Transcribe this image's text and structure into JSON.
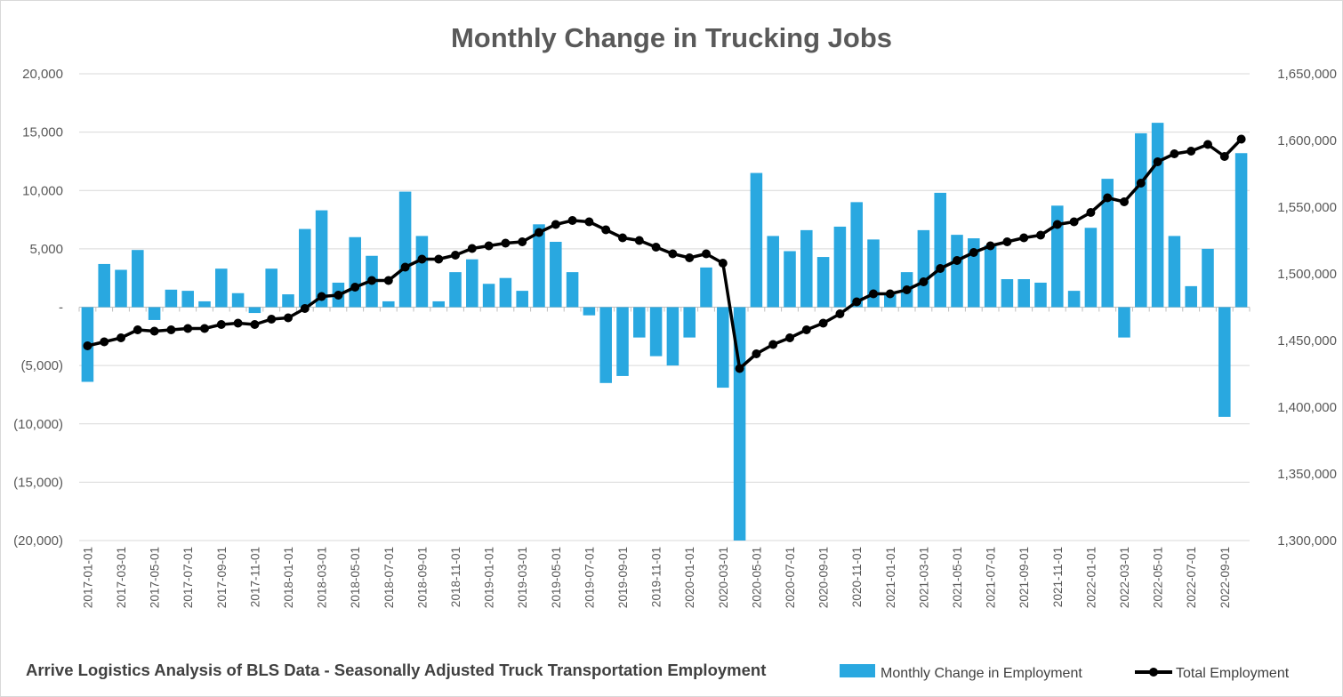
{
  "chart_data": {
    "type": "bar+line",
    "title": "Monthly Change in Trucking Jobs",
    "source_note": "Arrive Logistics Analysis of BLS Data - Seasonally Adjusted Truck Transportation  Employment",
    "x": [
      "2017-01-01",
      "2017-02-01",
      "2017-03-01",
      "2017-04-01",
      "2017-05-01",
      "2017-06-01",
      "2017-07-01",
      "2017-08-01",
      "2017-09-01",
      "2017-10-01",
      "2017-11-01",
      "2017-12-01",
      "2018-01-01",
      "2018-02-01",
      "2018-03-01",
      "2018-04-01",
      "2018-05-01",
      "2018-06-01",
      "2018-07-01",
      "2018-08-01",
      "2018-09-01",
      "2018-10-01",
      "2018-11-01",
      "2018-12-01",
      "2019-01-01",
      "2019-02-01",
      "2019-03-01",
      "2019-04-01",
      "2019-05-01",
      "2019-06-01",
      "2019-07-01",
      "2019-08-01",
      "2019-09-01",
      "2019-10-01",
      "2019-11-01",
      "2019-12-01",
      "2020-01-01",
      "2020-02-01",
      "2020-03-01",
      "2020-04-01",
      "2020-05-01",
      "2020-06-01",
      "2020-07-01",
      "2020-08-01",
      "2020-09-01",
      "2020-10-01",
      "2020-11-01",
      "2020-12-01",
      "2021-01-01",
      "2021-02-01",
      "2021-03-01",
      "2021-04-01",
      "2021-05-01",
      "2021-06-01",
      "2021-07-01",
      "2021-08-01",
      "2021-09-01",
      "2021-10-01",
      "2021-11-01",
      "2021-12-01",
      "2022-01-01",
      "2022-02-01",
      "2022-03-01",
      "2022-04-01",
      "2022-05-01",
      "2022-06-01",
      "2022-07-01",
      "2022-08-01",
      "2022-09-01",
      "2022-10-01"
    ],
    "x_tick_labels": [
      "2017-01-01",
      "2017-03-01",
      "2017-05-01",
      "2017-07-01",
      "2017-09-01",
      "2017-11-01",
      "2018-01-01",
      "2018-03-01",
      "2018-05-01",
      "2018-07-01",
      "2018-09-01",
      "2018-11-01",
      "2019-01-01",
      "2019-03-01",
      "2019-05-01",
      "2019-07-01",
      "2019-09-01",
      "2019-11-01",
      "2020-01-01",
      "2020-03-01",
      "2020-05-01",
      "2020-07-01",
      "2020-09-01",
      "2020-11-01",
      "2021-01-01",
      "2021-03-01",
      "2021-05-01",
      "2021-07-01",
      "2021-09-01",
      "2021-11-01",
      "2022-01-01",
      "2022-03-01",
      "2022-05-01",
      "2022-07-01",
      "2022-09-01"
    ],
    "series": [
      {
        "name": "Monthly Change in Employment",
        "type": "bar",
        "axis": "left",
        "color": "#29a8e0",
        "values": [
          -6400,
          3700,
          3200,
          4900,
          -1100,
          1500,
          1400,
          500,
          3300,
          1200,
          -500,
          3300,
          1100,
          6700,
          8300,
          2100,
          6000,
          4400,
          500,
          9900,
          6100,
          500,
          3000,
          4100,
          2000,
          2500,
          1400,
          7100,
          5600,
          3000,
          -700,
          -6500,
          -5900,
          -2600,
          -4200,
          -5000,
          -2600,
          3400,
          -6900,
          -20000,
          11500,
          6100,
          4800,
          6600,
          4300,
          6900,
          9000,
          5800,
          1100,
          3000,
          6600,
          9800,
          6200,
          5900,
          5300,
          2400,
          2400,
          2100,
          8700,
          1400,
          6800,
          11000,
          -2600,
          14900,
          15800,
          6100,
          1800,
          5000,
          -9400,
          13200
        ]
      },
      {
        "name": "Total Employment",
        "type": "line",
        "axis": "right",
        "color": "#000000",
        "values": [
          1446000,
          1449000,
          1452000,
          1458000,
          1457000,
          1458000,
          1459000,
          1459000,
          1462000,
          1463000,
          1462000,
          1466000,
          1467000,
          1474000,
          1483000,
          1484000,
          1490000,
          1495000,
          1495000,
          1505000,
          1511000,
          1511000,
          1514000,
          1519000,
          1521000,
          1523000,
          1524000,
          1531000,
          1537000,
          1540000,
          1539000,
          1533000,
          1527000,
          1525000,
          1520000,
          1515000,
          1512000,
          1515000,
          1508000,
          1429000,
          1440000,
          1447000,
          1452000,
          1458000,
          1463000,
          1470000,
          1479000,
          1485000,
          1485000,
          1488000,
          1494000,
          1504000,
          1510000,
          1516000,
          1521000,
          1524000,
          1527000,
          1529000,
          1537000,
          1539000,
          1546000,
          1557000,
          1554000,
          1568000,
          1584000,
          1590000,
          1592000,
          1597000,
          1588000,
          1601000
        ]
      }
    ],
    "y_left": {
      "min": -20000,
      "max": 20000,
      "ticks": [
        20000,
        15000,
        10000,
        5000,
        0,
        -5000,
        -10000,
        -15000,
        -20000
      ],
      "tick_labels": [
        "20,000",
        "15,000",
        "10,000",
        "5,000",
        "-",
        "(5,000)",
        "(10,000)",
        "(15,000)",
        "(20,000)"
      ]
    },
    "y_right": {
      "min": 1300000,
      "max": 1650000,
      "ticks": [
        1650000,
        1600000,
        1550000,
        1500000,
        1450000,
        1400000,
        1350000,
        1300000
      ],
      "tick_labels": [
        "1,650,000",
        "1,600,000",
        "1,550,000",
        "1,500,000",
        "1,450,000",
        "1,400,000",
        "1,350,000",
        "1,300,000"
      ]
    },
    "grid": true,
    "legend_position": "bottom-right"
  }
}
